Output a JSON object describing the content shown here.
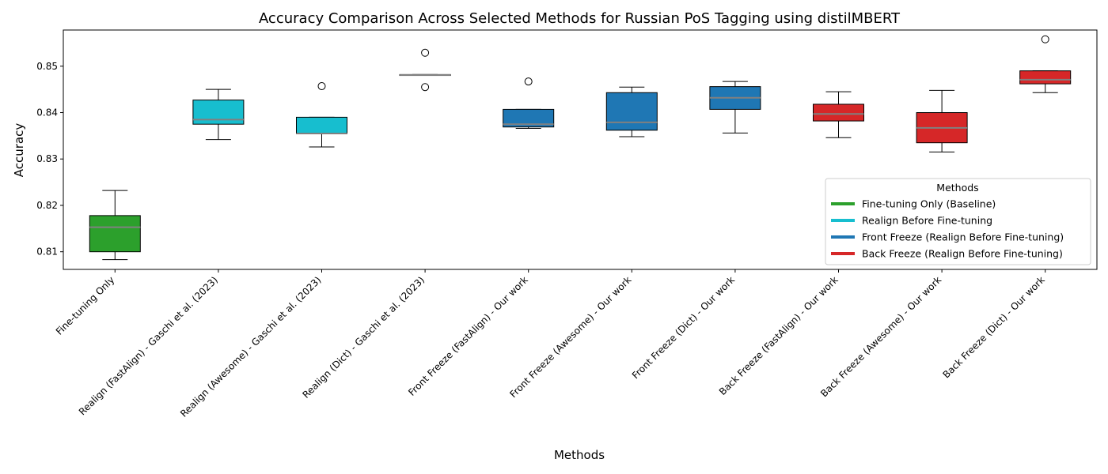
{
  "chart_data": {
    "type": "box",
    "title": "Accuracy Comparison Across Selected Methods for Russian PoS Tagging using distilMBERT",
    "xlabel": "Methods",
    "ylabel": "Accuracy",
    "ylim": [
      0.8062,
      0.8578
    ],
    "yticks": [
      0.81,
      0.82,
      0.83,
      0.84,
      0.85
    ],
    "ytick_labels": [
      "0.81",
      "0.82",
      "0.83",
      "0.84",
      "0.85"
    ],
    "grid": false,
    "median_color": "#808080",
    "categories": [
      "Fine-tuning Only",
      "Realign (FastAlign) - Gaschi et al. (2023)",
      "Realign (Awesome) - Gaschi et al. (2023)",
      "Realign (Dict) - Gaschi et al. (2023)",
      "Front Freeze (FastAlign) - Our work",
      "Front Freeze (Awesome) - Our work",
      "Front Freeze (Dict) - Our work",
      "Back Freeze (FastAlign) - Our work",
      "Back Freeze (Awesome) - Our work",
      "Back Freeze (Dict) - Our work"
    ],
    "boxes": [
      {
        "group": 0,
        "whisker_low": 0.8083,
        "q1": 0.81,
        "median": 0.8153,
        "q3": 0.8178,
        "whisker_high": 0.8232,
        "outliers": []
      },
      {
        "group": 1,
        "whisker_low": 0.8342,
        "q1": 0.8375,
        "median": 0.8385,
        "q3": 0.8427,
        "whisker_high": 0.845,
        "outliers": []
      },
      {
        "group": 1,
        "whisker_low": 0.8326,
        "q1": 0.8355,
        "median": 0.8355,
        "q3": 0.839,
        "whisker_high": 0.839,
        "outliers": [
          0.8457
        ]
      },
      {
        "group": 1,
        "whisker_low": 0.848,
        "q1": 0.848,
        "median": 0.8481,
        "q3": 0.8482,
        "whisker_high": 0.8482,
        "outliers": [
          0.8529,
          0.8455
        ]
      },
      {
        "group": 2,
        "whisker_low": 0.8366,
        "q1": 0.8369,
        "median": 0.8375,
        "q3": 0.8407,
        "whisker_high": 0.8407,
        "outliers": [
          0.8467
        ]
      },
      {
        "group": 2,
        "whisker_low": 0.8348,
        "q1": 0.8362,
        "median": 0.8379,
        "q3": 0.8443,
        "whisker_high": 0.8455,
        "outliers": []
      },
      {
        "group": 2,
        "whisker_low": 0.8356,
        "q1": 0.8407,
        "median": 0.8432,
        "q3": 0.8456,
        "whisker_high": 0.8467,
        "outliers": []
      },
      {
        "group": 3,
        "whisker_low": 0.8346,
        "q1": 0.8382,
        "median": 0.8397,
        "q3": 0.8418,
        "whisker_high": 0.8445,
        "outliers": []
      },
      {
        "group": 3,
        "whisker_low": 0.8315,
        "q1": 0.8335,
        "median": 0.8367,
        "q3": 0.84,
        "whisker_high": 0.8448,
        "outliers": []
      },
      {
        "group": 3,
        "whisker_low": 0.8443,
        "q1": 0.8462,
        "median": 0.8471,
        "q3": 0.849,
        "whisker_high": 0.849,
        "outliers": [
          0.8558
        ]
      }
    ],
    "legend": {
      "title": "Methods",
      "placement": "center-right",
      "entries": [
        {
          "label": "Fine-tuning Only (Baseline)",
          "color": "#2ca02c"
        },
        {
          "label": "Realign Before Fine-tuning",
          "color": "#17becf"
        },
        {
          "label": "Front Freeze (Realign Before Fine-tuning)",
          "color": "#1f77b4"
        },
        {
          "label": "Back Freeze (Realign Before Fine-tuning)",
          "color": "#d62728"
        }
      ]
    }
  }
}
